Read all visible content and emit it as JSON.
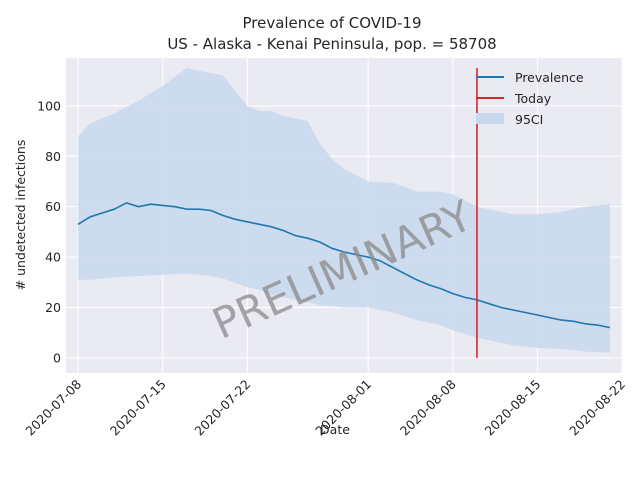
{
  "chart_data": {
    "type": "line",
    "title": "Prevalence of COVID-19",
    "subtitle": "US - Alaska - Kenai Peninsula, pop. = 58708",
    "xlabel": "Date",
    "ylabel": "# undetected infections",
    "xlim": [
      "2020-07-07",
      "2020-08-22"
    ],
    "ylim": [
      -6,
      119
    ],
    "x_ticks": [
      "2020-07-08",
      "2020-07-15",
      "2020-07-22",
      "2020-08-01",
      "2020-08-08",
      "2020-08-15",
      "2020-08-22"
    ],
    "y_ticks": [
      0,
      20,
      40,
      60,
      80,
      100
    ],
    "grid": true,
    "legend_position": "top-right",
    "watermark": "PRELIMINARY",
    "colors": {
      "line": "#1f77b4",
      "today": "#d62728",
      "band": "#c7d8ec",
      "plot_bg": "#eaeaf2",
      "grid": "#ffffff"
    },
    "series": [
      {
        "name": "Prevalence",
        "x": [
          "2020-07-08",
          "2020-07-09",
          "2020-07-10",
          "2020-07-11",
          "2020-07-12",
          "2020-07-13",
          "2020-07-14",
          "2020-07-15",
          "2020-07-16",
          "2020-07-17",
          "2020-07-18",
          "2020-07-19",
          "2020-07-20",
          "2020-07-21",
          "2020-07-22",
          "2020-07-23",
          "2020-07-24",
          "2020-07-25",
          "2020-07-26",
          "2020-07-27",
          "2020-07-28",
          "2020-07-29",
          "2020-07-30",
          "2020-07-31",
          "2020-08-01",
          "2020-08-02",
          "2020-08-03",
          "2020-08-04",
          "2020-08-05",
          "2020-08-06",
          "2020-08-07",
          "2020-08-08",
          "2020-08-09",
          "2020-08-10",
          "2020-08-11",
          "2020-08-12",
          "2020-08-13",
          "2020-08-14",
          "2020-08-15",
          "2020-08-16",
          "2020-08-17",
          "2020-08-18",
          "2020-08-19",
          "2020-08-20",
          "2020-08-21"
        ],
        "y": [
          53,
          56,
          57.5,
          59,
          61.5,
          60,
          61,
          60.5,
          60,
          59,
          59,
          58.5,
          56.5,
          55,
          54,
          53,
          52,
          50.5,
          48.5,
          47.5,
          46,
          43.5,
          42,
          41,
          40,
          38.5,
          36,
          33.5,
          31,
          29,
          27.5,
          25.5,
          24,
          23,
          21.5,
          20,
          19,
          18,
          17,
          16,
          15,
          14.5,
          13.5,
          13,
          12
        ]
      },
      {
        "name": "Today",
        "x": [
          "2020-08-10",
          "2020-08-10"
        ],
        "y": [
          0,
          115
        ]
      },
      {
        "name": "95CI",
        "x": [
          "2020-07-08",
          "2020-07-09",
          "2020-07-11",
          "2020-07-13",
          "2020-07-15",
          "2020-07-17",
          "2020-07-19",
          "2020-07-20",
          "2020-07-22",
          "2020-07-23",
          "2020-07-24",
          "2020-07-25",
          "2020-07-27",
          "2020-07-28",
          "2020-07-29",
          "2020-07-30",
          "2020-08-01",
          "2020-08-03",
          "2020-08-04",
          "2020-08-05",
          "2020-08-07",
          "2020-08-08",
          "2020-08-10",
          "2020-08-12",
          "2020-08-13",
          "2020-08-15",
          "2020-08-17",
          "2020-08-19",
          "2020-08-21"
        ],
        "upper": [
          88,
          93,
          97,
          102,
          108,
          115,
          113,
          112,
          100,
          98,
          98,
          96,
          94,
          85,
          79,
          75,
          70,
          69.5,
          68,
          66,
          66,
          65,
          60,
          58,
          57,
          57,
          58,
          60,
          61
        ],
        "lower": [
          31,
          31,
          32,
          32.5,
          33,
          33.5,
          32.5,
          31.5,
          28,
          27,
          25,
          24,
          22,
          21,
          20.5,
          20,
          20,
          18,
          16.5,
          15,
          13,
          11,
          8,
          6,
          5,
          4,
          3.5,
          2.5,
          2
        ]
      }
    ]
  }
}
